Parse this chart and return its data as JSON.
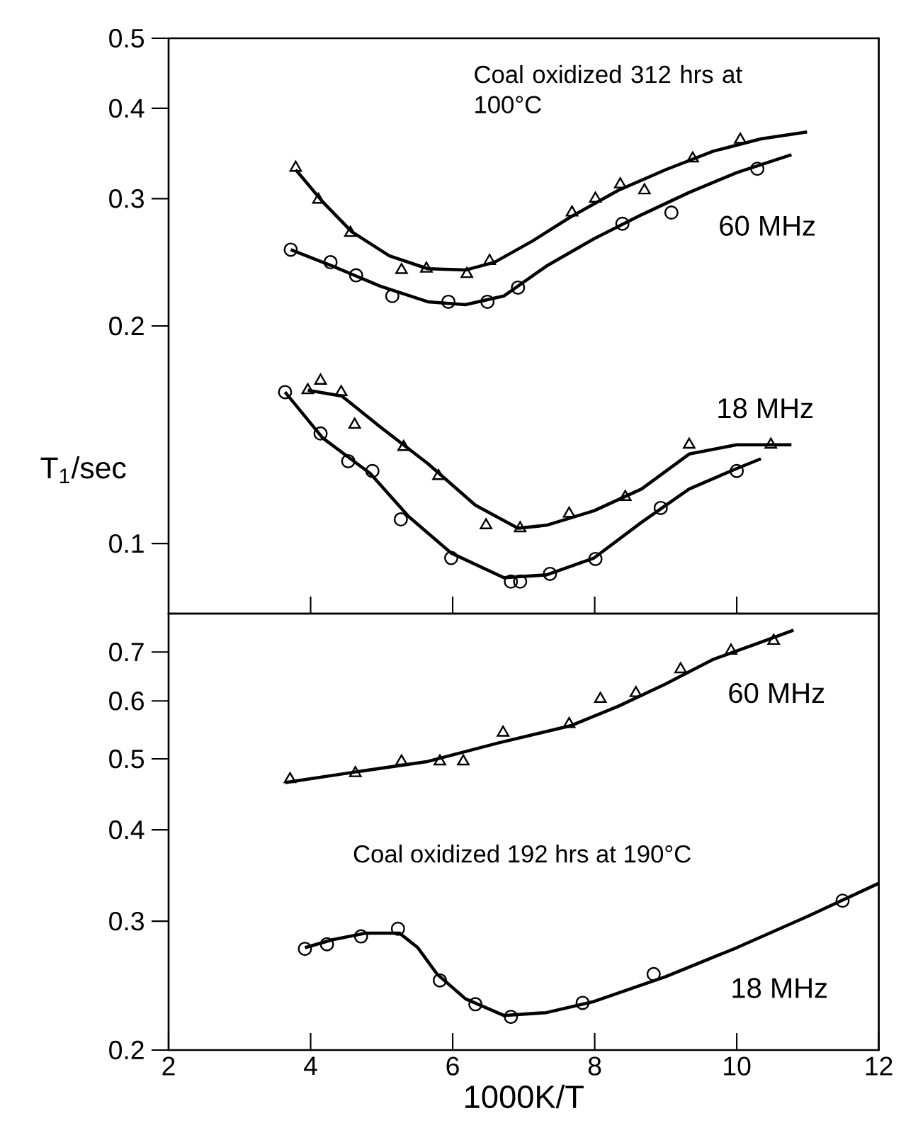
{
  "chart_data": [
    {
      "type": "line",
      "log": "y",
      "xlim": [
        2,
        12
      ],
      "xticks": [
        4,
        6,
        8,
        10
      ],
      "ylim": [
        0.08,
        0.5
      ],
      "yticks": [
        0.1,
        0.2,
        0.3,
        0.4,
        0.5
      ],
      "tick_labels": "y",
      "ylabel": "T$_{1}$/sec",
      "annotations": [
        "Coal oxidized 312 hrs at 100°C",
        "60 MHz",
        "18 MHz"
      ],
      "series": [
        {
          "type": "scatter",
          "marker": "triangle",
          "color": "#000000",
          "x": [
            3.79,
            4.11,
            4.56,
            5.28,
            5.63,
            6.2,
            6.52,
            7.68,
            8.01,
            8.36,
            8.7,
            9.38,
            10.05
          ],
          "values": [
            0.331,
            0.299,
            0.269,
            0.239,
            0.24,
            0.236,
            0.246,
            0.287,
            0.3,
            0.314,
            0.308,
            0.341,
            0.362
          ]
        },
        {
          "marker": "none",
          "color": "#000000",
          "x": [
            3.79,
            4.17,
            4.58,
            5.11,
            5.65,
            6.18,
            6.59,
            7.12,
            7.66,
            8.33,
            9.0,
            9.67,
            10.34,
            10.99
          ],
          "values": [
            0.329,
            0.297,
            0.27,
            0.25,
            0.24,
            0.239,
            0.245,
            0.262,
            0.283,
            0.308,
            0.329,
            0.349,
            0.363,
            0.371
          ]
        },
        {
          "type": "scatter",
          "marker": "circle",
          "color": "#000000",
          "x": [
            3.72,
            4.28,
            4.64,
            5.15,
            5.94,
            6.49,
            6.92,
            8.39,
            9.08,
            10.29
          ],
          "values": [
            0.255,
            0.245,
            0.235,
            0.22,
            0.216,
            0.216,
            0.226,
            0.277,
            0.287,
            0.33
          ]
        },
        {
          "marker": "none",
          "color": "#000000",
          "x": [
            3.72,
            4.31,
            4.98,
            5.65,
            6.18,
            6.72,
            7.32,
            7.99,
            8.66,
            9.33,
            10.0,
            10.77
          ],
          "values": [
            0.255,
            0.242,
            0.227,
            0.216,
            0.214,
            0.22,
            0.242,
            0.264,
            0.285,
            0.306,
            0.326,
            0.345
          ]
        },
        {
          "type": "scatter",
          "marker": "triangle",
          "color": "#000000",
          "x": [
            3.96,
            4.14,
            4.43,
            4.62,
            5.31,
            5.8,
            6.47,
            6.95,
            7.64,
            8.43,
            9.33,
            10.48
          ],
          "values": [
            0.163,
            0.168,
            0.162,
            0.146,
            0.136,
            0.124,
            0.106,
            0.105,
            0.11,
            0.116,
            0.137,
            0.137
          ]
        },
        {
          "marker": "none",
          "color": "#000000",
          "x": [
            3.96,
            4.44,
            4.98,
            5.65,
            6.32,
            6.92,
            7.32,
            7.99,
            8.66,
            9.33,
            10.0,
            10.77
          ],
          "values": [
            0.163,
            0.16,
            0.145,
            0.129,
            0.113,
            0.105,
            0.106,
            0.111,
            0.119,
            0.133,
            0.137,
            0.137
          ]
        },
        {
          "type": "scatter",
          "marker": "circle",
          "color": "#000000",
          "x": [
            3.64,
            4.14,
            4.53,
            4.87,
            5.27,
            5.98,
            6.82,
            6.95,
            7.37,
            8.01,
            8.93,
            10.0
          ],
          "values": [
            0.162,
            0.142,
            0.13,
            0.126,
            0.108,
            0.0955,
            0.0886,
            0.0886,
            0.0908,
            0.0952,
            0.112,
            0.126
          ]
        },
        {
          "marker": "none",
          "color": "#000000",
          "x": [
            3.64,
            4.17,
            4.84,
            5.38,
            5.98,
            6.72,
            7.32,
            7.99,
            8.66,
            9.33,
            10.0,
            10.34
          ],
          "values": [
            0.162,
            0.14,
            0.125,
            0.109,
            0.097,
            0.0897,
            0.0905,
            0.0955,
            0.107,
            0.119,
            0.127,
            0.131
          ]
        }
      ]
    },
    {
      "type": "line",
      "log": "y",
      "xlim": [
        2,
        12
      ],
      "xticks": [
        2,
        4,
        6,
        8,
        10,
        12
      ],
      "ylim": [
        0.2,
        0.79
      ],
      "yticks": [
        0.2,
        0.3,
        0.4,
        0.5,
        0.6,
        0.7
      ],
      "xlabel": "1000K/T",
      "annotations": [
        "Coal oxidized 192 hrs at 190°C",
        "60 MHz",
        "18 MHz"
      ],
      "series": [
        {
          "type": "scatter",
          "marker": "triangle",
          "color": "#000000",
          "x": [
            3.71,
            4.63,
            5.28,
            5.82,
            6.15,
            6.71,
            7.64,
            8.08,
            8.58,
            9.21,
            9.92,
            10.52
          ],
          "values": [
            0.469,
            0.478,
            0.496,
            0.496,
            0.496,
            0.543,
            0.558,
            0.604,
            0.615,
            0.663,
            0.703,
            0.725
          ]
        },
        {
          "marker": "none",
          "color": "#000000",
          "x": [
            3.64,
            4.64,
            5.65,
            6.65,
            7.66,
            8.33,
            9.0,
            9.67,
            10.34,
            10.8
          ],
          "values": [
            0.464,
            0.48,
            0.496,
            0.526,
            0.555,
            0.59,
            0.633,
            0.684,
            0.722,
            0.75
          ]
        },
        {
          "type": "scatter",
          "marker": "circle",
          "color": "#000000",
          "x": [
            3.92,
            4.23,
            4.71,
            5.23,
            5.82,
            6.32,
            6.82,
            7.83,
            8.83,
            11.49
          ],
          "values": [
            0.275,
            0.279,
            0.286,
            0.293,
            0.249,
            0.231,
            0.222,
            0.232,
            0.254,
            0.32
          ]
        },
        {
          "marker": "none",
          "color": "#000000",
          "x": [
            3.92,
            4.31,
            4.78,
            5.25,
            5.51,
            5.78,
            6.18,
            6.72,
            7.32,
            7.99,
            9.0,
            10.0,
            11.01,
            12.0
          ],
          "values": [
            0.276,
            0.283,
            0.289,
            0.289,
            0.276,
            0.254,
            0.235,
            0.223,
            0.225,
            0.233,
            0.252,
            0.276,
            0.305,
            0.338
          ]
        }
      ]
    }
  ]
}
